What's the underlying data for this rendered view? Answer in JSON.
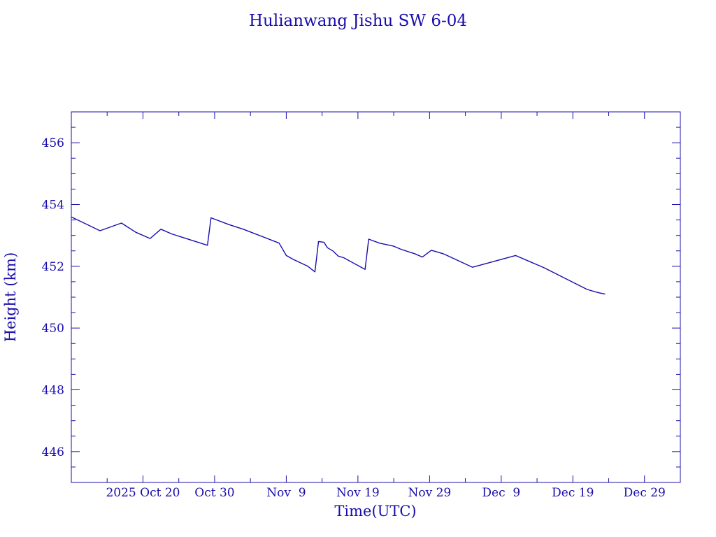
{
  "chart_data": {
    "type": "line",
    "title": "Hulianwang Jishu SW 6-04",
    "xlabel": "Time(UTC)",
    "ylabel": "Height (km)",
    "ylim": [
      445,
      457
    ],
    "xlim": [
      "2025-10-10T00:00",
      "2026-01-03T00:00"
    ],
    "y_ticks": [
      446,
      448,
      450,
      452,
      454,
      456
    ],
    "x_ticks": [
      {
        "label": "2025 Oct 20",
        "date": "2025-10-20"
      },
      {
        "label": "Oct 30",
        "date": "2025-10-30"
      },
      {
        "label": "Nov  9",
        "date": "2025-11-09"
      },
      {
        "label": "Nov 19",
        "date": "2025-11-19"
      },
      {
        "label": "Nov 29",
        "date": "2025-11-29"
      },
      {
        "label": "Dec  9",
        "date": "2025-12-09"
      },
      {
        "label": "Dec 19",
        "date": "2025-12-19"
      },
      {
        "label": "Dec 29",
        "date": "2025-12-29"
      }
    ],
    "grid": false,
    "series": [
      {
        "points": [
          [
            "2025-10-10T00:00",
            453.6
          ],
          [
            "2025-10-14T00:00",
            453.15
          ],
          [
            "2025-10-17T00:00",
            453.4
          ],
          [
            "2025-10-19T00:00",
            453.1
          ],
          [
            "2025-10-21T00:00",
            452.9
          ],
          [
            "2025-10-22T12:00",
            453.2
          ],
          [
            "2025-10-24T00:00",
            453.05
          ],
          [
            "2025-10-26T00:00",
            452.9
          ],
          [
            "2025-10-29T00:00",
            452.68
          ],
          [
            "2025-10-29T12:00",
            453.57
          ],
          [
            "2025-11-01T00:00",
            453.35
          ],
          [
            "2025-11-03T00:00",
            453.2
          ],
          [
            "2025-11-08T00:00",
            452.75
          ],
          [
            "2025-11-09T00:00",
            452.35
          ],
          [
            "2025-11-10T00:00",
            452.22
          ],
          [
            "2025-11-12T00:00",
            452.0
          ],
          [
            "2025-11-13T00:00",
            451.82
          ],
          [
            "2025-11-13T12:00",
            452.8
          ],
          [
            "2025-11-14T06:00",
            452.78
          ],
          [
            "2025-11-14T18:00",
            452.6
          ],
          [
            "2025-11-15T12:00",
            452.5
          ],
          [
            "2025-11-16T06:00",
            452.33
          ],
          [
            "2025-11-17T00:00",
            452.28
          ],
          [
            "2025-11-20T00:00",
            451.9
          ],
          [
            "2025-11-20T12:00",
            452.88
          ],
          [
            "2025-11-22T00:00",
            452.75
          ],
          [
            "2025-11-24T00:00",
            452.65
          ],
          [
            "2025-11-25T00:00",
            452.55
          ],
          [
            "2025-11-27T00:00",
            452.4
          ],
          [
            "2025-11-28T00:00",
            452.3
          ],
          [
            "2025-11-29T06:00",
            452.52
          ],
          [
            "2025-12-01T00:00",
            452.4
          ],
          [
            "2025-12-05T00:00",
            451.97
          ],
          [
            "2025-12-11T00:00",
            452.35
          ],
          [
            "2025-12-15T00:00",
            451.95
          ],
          [
            "2025-12-18T00:00",
            451.6
          ],
          [
            "2025-12-21T00:00",
            451.25
          ],
          [
            "2025-12-22T12:00",
            451.15
          ],
          [
            "2025-12-23T12:00",
            451.1
          ]
        ]
      }
    ]
  }
}
